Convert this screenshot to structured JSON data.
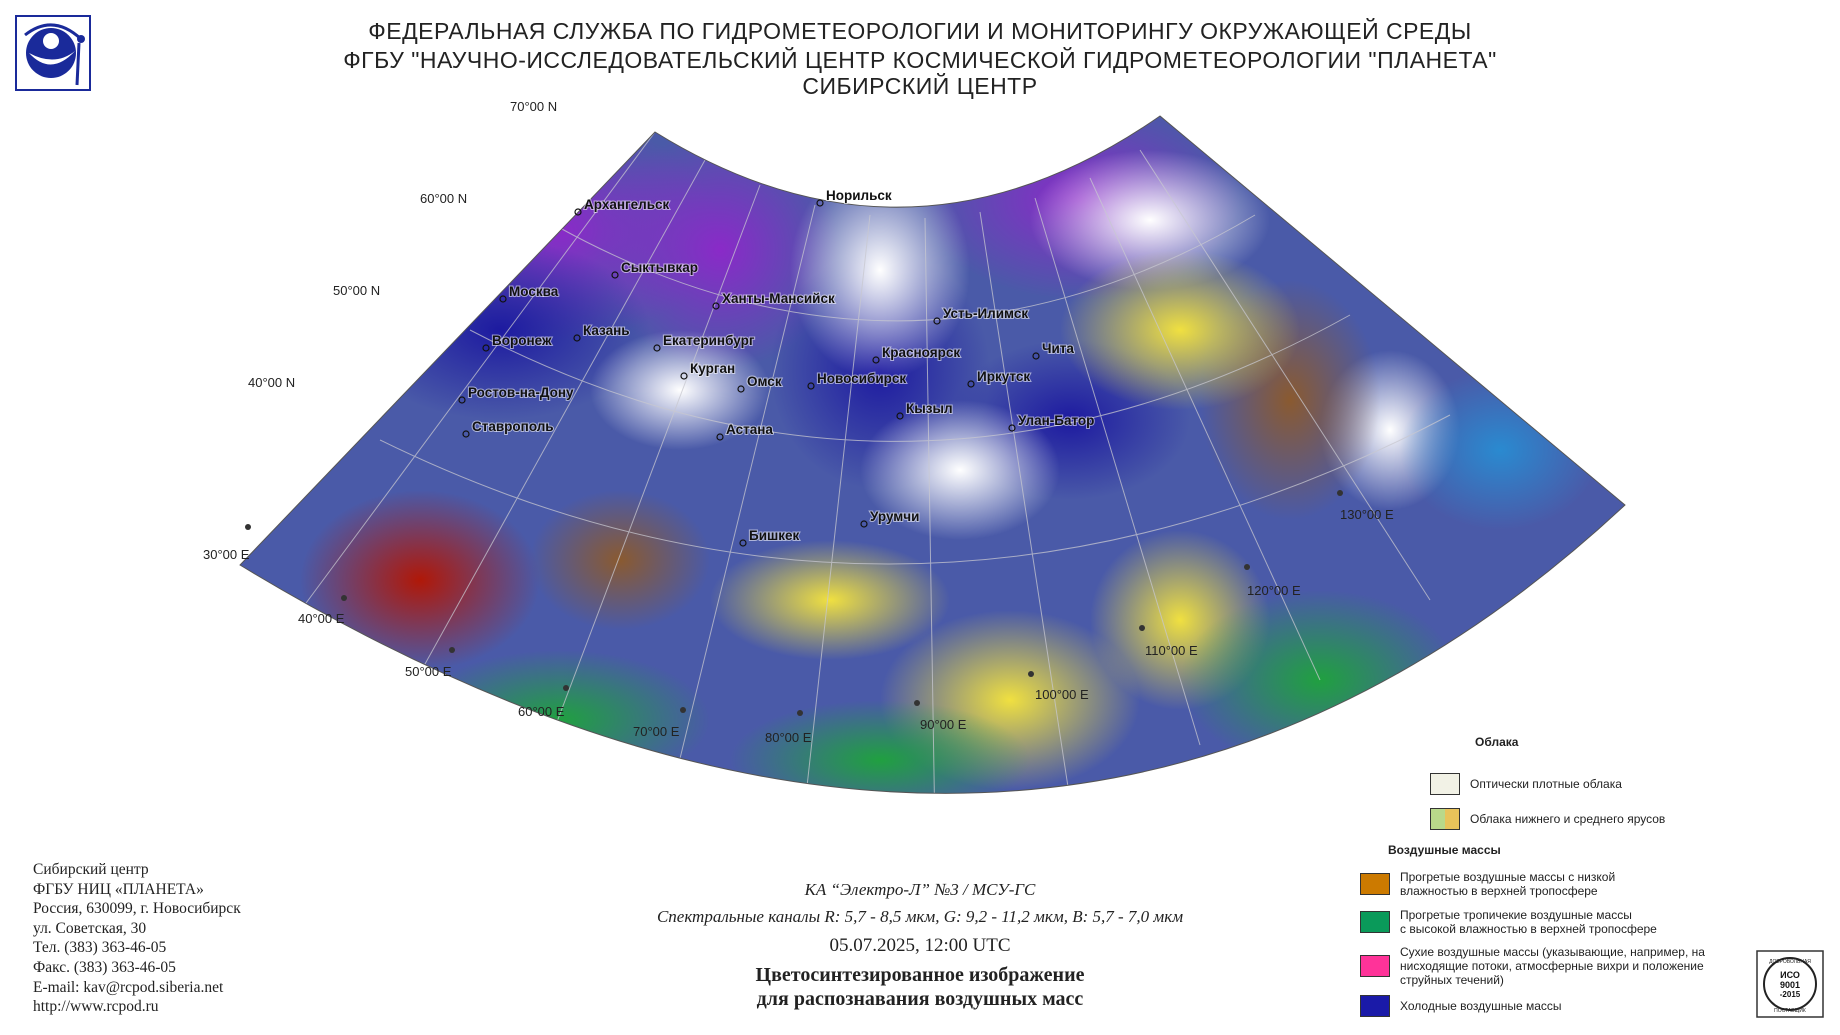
{
  "header": {
    "line1": "ФЕДЕРАЛЬНАЯ СЛУЖБА ПО ГИДРОМЕТЕОРОЛОГИИ И МОНИТОРИНГУ ОКРУЖАЮЩЕЙ СРЕДЫ",
    "line2": "ФГБУ \"НАУЧНО-ИССЛЕДОВАТЕЛЬСКИЙ ЦЕНТР КОСМИЧЕСКОЙ ГИДРОМЕТЕОРОЛОГИИ \"ПЛАНЕТА\"",
    "line3": "СИБИРСКИЙ ЦЕНТР"
  },
  "map": {
    "lat_labels": [
      "70°00 N",
      "60°00 N",
      "50°00 N",
      "40°00 N"
    ],
    "lon_labels": [
      "30°00 E",
      "40°00 E",
      "50°00 E",
      "60°00 E",
      "70°00 E",
      "80°00 E",
      "90°00 E",
      "100°00 E",
      "110°00 E",
      "120°00 E",
      "130°00 E"
    ],
    "cities": [
      {
        "name": "Архангельск"
      },
      {
        "name": "Норильск"
      },
      {
        "name": "Сыктывкар"
      },
      {
        "name": "Москва"
      },
      {
        "name": "Ханты-Мансийск"
      },
      {
        "name": "Усть-Илимск"
      },
      {
        "name": "Казань"
      },
      {
        "name": "Воронеж"
      },
      {
        "name": "Екатеринбург"
      },
      {
        "name": "Красноярск"
      },
      {
        "name": "Чита"
      },
      {
        "name": "Курган"
      },
      {
        "name": "Омск"
      },
      {
        "name": "Новосибирск"
      },
      {
        "name": "Иркутск"
      },
      {
        "name": "Ростов-на-Дону"
      },
      {
        "name": "Кызыл"
      },
      {
        "name": "Улан-Батор"
      },
      {
        "name": "Ставрополь"
      },
      {
        "name": "Астана"
      },
      {
        "name": "Урумчи"
      },
      {
        "name": "Бишкек"
      }
    ]
  },
  "caption": {
    "satellite": "КА “Электро-Л” №3 / МСУ-ГС",
    "channels": "Спектральные каналы R: 5,7 - 8,5 мкм, G: 9,2 - 11,2 мкм, B: 5,7 - 7,0 мкм",
    "datetime": "05.07.2025, 12:00 UTC",
    "title_line1": "Цветосинтезированное изображение",
    "title_line2": "для распознавания воздушных масс"
  },
  "contacts": [
    "Сибирский центр",
    "ФГБУ НИЦ «ПЛАНЕТА»",
    "Россия, 630099, г. Новосибирск",
    "ул. Советская, 30",
    "Тел. (383) 363-46-05",
    "Факс. (383) 363-46-05",
    "E-mail: kav@rcpod.siberia.net",
    "http://www.rcpod.ru"
  ],
  "legend": {
    "clouds_title": "Облака",
    "clouds": [
      {
        "label": "Оптически плотные облака",
        "colors": [
          "#f2f2e6"
        ]
      },
      {
        "label": "Облака нижнего и среднего ярусов",
        "colors": [
          "#b9d98a",
          "#e8c35a"
        ]
      }
    ],
    "air_title": "Воздушные массы",
    "air": [
      {
        "label_lines": [
          "Прогретые воздушные массы с низкой",
          "влажностью в верхней тропосфере"
        ],
        "color": "#cc7a00"
      },
      {
        "label_lines": [
          "Прогретые тропичекие воздушные массы",
          "с высокой влажностью в верхней тропосфере"
        ],
        "color": "#0a9a5a"
      },
      {
        "label_lines": [
          "Сухие воздушные массы (указывающие, например, на",
          "нисходящие потоки, атмосферные вихри и положение",
          "струйных течений)"
        ],
        "color": "#ff3399"
      },
      {
        "label_lines": [
          "Холодные воздушные массы"
        ],
        "color": "#1a1aa8"
      }
    ]
  },
  "iso_badge": {
    "text_top": "ДОБРОВОЛЬНАЯ",
    "text_main1": "ИСО",
    "text_main2": "9001",
    "text_main3": "-2015",
    "text_bottom": "ПОСТАВЩИК"
  }
}
